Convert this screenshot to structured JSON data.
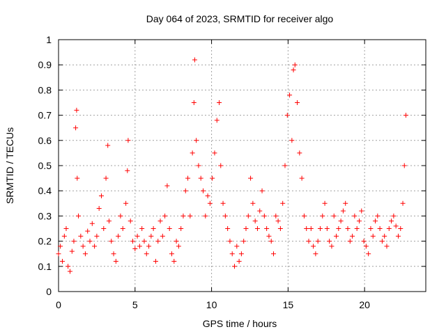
{
  "chart_data": {
    "type": "scatter",
    "title": "Day 064 of 2023, SRMTID for receiver algo",
    "xlabel": "GPS time / hours",
    "ylabel": "SRMTID / TECUs",
    "xlim": [
      0,
      24
    ],
    "ylim": [
      0,
      1
    ],
    "x_ticks": [
      0,
      5,
      10,
      15,
      20
    ],
    "x_tick_labels": [
      "0",
      "5",
      "10",
      "15",
      "20"
    ],
    "y_ticks": [
      0,
      0.1,
      0.2,
      0.3,
      0.4,
      0.5,
      0.6,
      0.7,
      0.8,
      0.9,
      1
    ],
    "y_tick_labels": [
      "0",
      "0.1",
      "0.2",
      "0.3",
      "0.4",
      "0.5",
      "0.6",
      "0.7",
      "0.8",
      "0.9",
      "1"
    ],
    "grid": true,
    "marker": "+",
    "marker_color": "#ff0000",
    "series": [
      {
        "name": "SRMTID",
        "x": [
          0.0,
          0.12,
          0.25,
          0.38,
          0.5,
          0.62,
          0.75,
          0.88,
          1.0,
          1.12,
          1.18,
          1.22,
          1.3,
          1.45,
          1.6,
          1.75,
          1.9,
          2.05,
          2.2,
          2.35,
          2.5,
          2.65,
          2.8,
          2.95,
          3.1,
          3.22,
          3.3,
          3.45,
          3.6,
          3.75,
          3.9,
          4.05,
          4.2,
          4.4,
          4.5,
          4.55,
          4.7,
          4.85,
          5.0,
          5.15,
          5.3,
          5.45,
          5.6,
          5.75,
          5.9,
          6.05,
          6.2,
          6.35,
          6.5,
          6.65,
          6.8,
          6.95,
          7.1,
          7.25,
          7.4,
          7.55,
          7.7,
          7.85,
          8.0,
          8.15,
          8.3,
          8.45,
          8.6,
          8.75,
          8.85,
          8.9,
          9.0,
          9.15,
          9.3,
          9.45,
          9.6,
          9.75,
          9.9,
          10.05,
          10.2,
          10.35,
          10.5,
          10.6,
          10.75,
          10.9,
          11.05,
          11.2,
          11.35,
          11.5,
          11.65,
          11.8,
          11.95,
          12.1,
          12.25,
          12.4,
          12.55,
          12.7,
          12.85,
          13.0,
          13.15,
          13.3,
          13.45,
          13.6,
          13.75,
          13.9,
          14.05,
          14.2,
          14.35,
          14.5,
          14.65,
          14.8,
          14.95,
          15.1,
          15.25,
          15.35,
          15.45,
          15.6,
          15.75,
          15.9,
          16.05,
          16.2,
          16.35,
          16.5,
          16.65,
          16.8,
          16.95,
          17.1,
          17.25,
          17.4,
          17.55,
          17.7,
          17.85,
          18.0,
          18.15,
          18.3,
          18.45,
          18.6,
          18.75,
          18.9,
          19.05,
          19.2,
          19.35,
          19.5,
          19.65,
          19.8,
          19.95,
          20.1,
          20.25,
          20.4,
          20.55,
          20.7,
          20.85,
          21.0,
          21.15,
          21.3,
          21.45,
          21.6,
          21.75,
          21.9,
          22.05,
          22.2,
          22.35,
          22.5,
          22.6,
          22.7
        ],
        "y": [
          0.15,
          0.18,
          0.12,
          0.22,
          0.25,
          0.1,
          0.08,
          0.16,
          0.2,
          0.65,
          0.72,
          0.45,
          0.3,
          0.22,
          0.18,
          0.15,
          0.24,
          0.2,
          0.27,
          0.18,
          0.22,
          0.33,
          0.38,
          0.25,
          0.45,
          0.58,
          0.28,
          0.2,
          0.15,
          0.12,
          0.22,
          0.3,
          0.25,
          0.35,
          0.48,
          0.6,
          0.28,
          0.2,
          0.17,
          0.22,
          0.18,
          0.25,
          0.2,
          0.15,
          0.18,
          0.22,
          0.25,
          0.12,
          0.2,
          0.28,
          0.22,
          0.3,
          0.42,
          0.25,
          0.15,
          0.12,
          0.2,
          0.18,
          0.25,
          0.3,
          0.4,
          0.45,
          0.3,
          0.55,
          0.75,
          0.92,
          0.6,
          0.5,
          0.45,
          0.4,
          0.3,
          0.38,
          0.35,
          0.45,
          0.55,
          0.68,
          0.75,
          0.5,
          0.35,
          0.3,
          0.25,
          0.2,
          0.15,
          0.1,
          0.18,
          0.12,
          0.15,
          0.2,
          0.25,
          0.3,
          0.45,
          0.35,
          0.28,
          0.25,
          0.32,
          0.4,
          0.3,
          0.25,
          0.22,
          0.2,
          0.15,
          0.3,
          0.28,
          0.25,
          0.35,
          0.5,
          0.7,
          0.78,
          0.6,
          0.88,
          0.9,
          0.75,
          0.55,
          0.45,
          0.3,
          0.25,
          0.2,
          0.25,
          0.18,
          0.15,
          0.2,
          0.25,
          0.3,
          0.35,
          0.25,
          0.2,
          0.18,
          0.3,
          0.22,
          0.25,
          0.28,
          0.32,
          0.35,
          0.25,
          0.2,
          0.22,
          0.3,
          0.25,
          0.28,
          0.32,
          0.2,
          0.18,
          0.15,
          0.25,
          0.22,
          0.28,
          0.3,
          0.25,
          0.2,
          0.22,
          0.18,
          0.25,
          0.28,
          0.3,
          0.26,
          0.22,
          0.25,
          0.35,
          0.5,
          0.7
        ]
      }
    ]
  }
}
